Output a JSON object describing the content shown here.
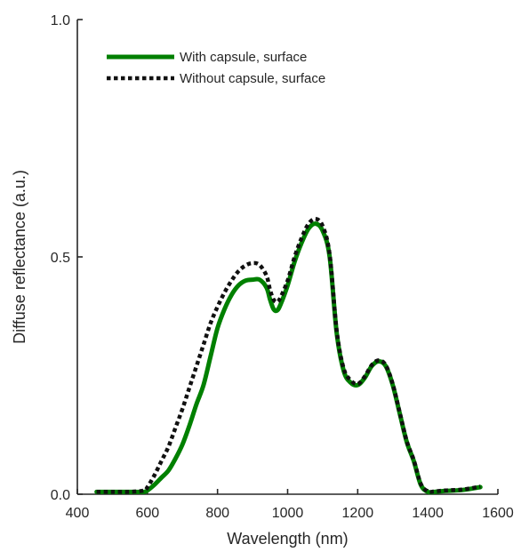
{
  "chart_data": {
    "type": "line",
    "title": "",
    "xlabel": "Wavelength (nm)",
    "ylabel": "Diffuse reflectance (a.u.)",
    "xlim": [
      400,
      1600
    ],
    "ylim": [
      0,
      1
    ],
    "xticks": [
      400,
      600,
      800,
      1000,
      1200,
      1400,
      1600
    ],
    "yticks": [
      0,
      0.5,
      1
    ],
    "xtick_labels": [
      "400",
      "600",
      "800",
      "1000",
      "1200",
      "1400",
      "1600"
    ],
    "ytick_labels": [
      "0.0",
      "0.5",
      "1.0"
    ],
    "grid": false,
    "legend": "top-left",
    "series": [
      {
        "name": "With capsule, surface",
        "color": "#008000",
        "style": "solid",
        "x": [
          455,
          500,
          550,
          590,
          600,
          620,
          640,
          660,
          680,
          700,
          720,
          740,
          760,
          780,
          800,
          820,
          840,
          860,
          880,
          900,
          920,
          940,
          950,
          960,
          970,
          980,
          1000,
          1020,
          1040,
          1060,
          1080,
          1100,
          1120,
          1140,
          1160,
          1180,
          1200,
          1220,
          1240,
          1260,
          1280,
          1300,
          1320,
          1340,
          1360,
          1380,
          1400,
          1420,
          1450,
          1500,
          1550
        ],
        "y": [
          0.005,
          0.005,
          0.005,
          0.005,
          0.008,
          0.02,
          0.035,
          0.05,
          0.075,
          0.105,
          0.145,
          0.19,
          0.23,
          0.29,
          0.35,
          0.39,
          0.42,
          0.44,
          0.45,
          0.452,
          0.452,
          0.435,
          0.41,
          0.39,
          0.387,
          0.4,
          0.44,
          0.49,
          0.53,
          0.56,
          0.57,
          0.555,
          0.5,
          0.34,
          0.26,
          0.235,
          0.23,
          0.245,
          0.27,
          0.28,
          0.27,
          0.23,
          0.17,
          0.11,
          0.07,
          0.02,
          0.005,
          0.005,
          0.007,
          0.009,
          0.015
        ]
      },
      {
        "name": "Without capsule, surface",
        "color": "#111111",
        "style": "dotted",
        "x": [
          455,
          500,
          550,
          590,
          600,
          620,
          640,
          660,
          680,
          700,
          720,
          740,
          760,
          780,
          800,
          820,
          840,
          860,
          880,
          900,
          920,
          940,
          950,
          960,
          970,
          980,
          1000,
          1020,
          1040,
          1060,
          1080,
          1100,
          1120,
          1140,
          1160,
          1180,
          1200,
          1220,
          1240,
          1260,
          1280,
          1300,
          1320,
          1340,
          1360,
          1380,
          1400,
          1420,
          1450,
          1500,
          1550
        ],
        "y": [
          0.005,
          0.005,
          0.005,
          0.008,
          0.015,
          0.04,
          0.07,
          0.1,
          0.14,
          0.18,
          0.225,
          0.27,
          0.315,
          0.36,
          0.395,
          0.425,
          0.45,
          0.47,
          0.482,
          0.487,
          0.483,
          0.46,
          0.43,
          0.41,
          0.405,
          0.415,
          0.45,
          0.5,
          0.54,
          0.57,
          0.58,
          0.565,
          0.505,
          0.345,
          0.265,
          0.24,
          0.232,
          0.248,
          0.272,
          0.282,
          0.272,
          0.232,
          0.172,
          0.112,
          0.072,
          0.022,
          0.006,
          0.006,
          0.008,
          0.01,
          0.016
        ]
      }
    ]
  }
}
